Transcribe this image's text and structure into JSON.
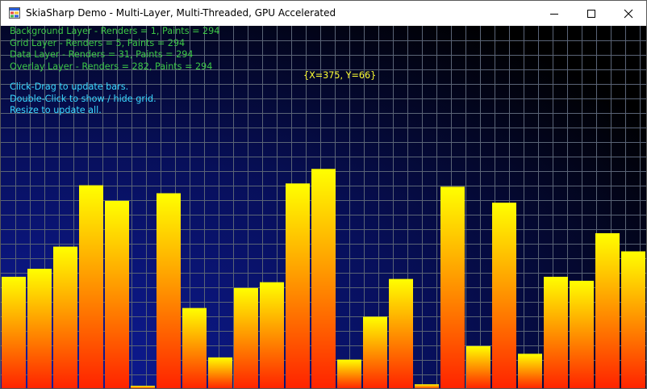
{
  "window": {
    "title": "SkiaSharp Demo - Multi-Layer, Multi-Threaded, GPU Accelerated",
    "icon": "app-window-icon",
    "controls": [
      "minimize-icon",
      "maximize-icon",
      "close-icon"
    ]
  },
  "stats": {
    "background": "Background Layer - Renders = 1, Paints = 294",
    "grid": "Grid Layer - Renders = 5, Paints = 294",
    "data": "Data Layer - Renders = 31, Paints = 294",
    "overlay": "Overlay Layer - Renders = 282, Paints = 294"
  },
  "help": {
    "line1": "Click-Drag to update bars.",
    "line2": "Double-Click to show / hide grid.",
    "line3": "Resize to update all."
  },
  "cursor_readout": "{X=375, Y=66}",
  "colors": {
    "background_light": "#0f1da0",
    "background_dark": "#000000",
    "grid": "#5a6476",
    "bar_top": "#ffff00",
    "bar_bottom": "#ff2200",
    "stats_text": "#3cc846",
    "help_text": "#3ad8ff",
    "readout_text": "#ffff33"
  },
  "grid_visible": true,
  "chart_data": {
    "type": "bar",
    "ylim": [
      0,
      1
    ],
    "values": [
      0.309,
      0.331,
      0.392,
      0.561,
      0.518,
      0.009,
      0.539,
      0.223,
      0.087,
      0.278,
      0.294,
      0.566,
      0.606,
      0.081,
      0.199,
      0.303,
      0.013,
      0.557,
      0.118,
      0.513,
      0.097,
      0.309,
      0.298,
      0.429,
      0.379
    ]
  }
}
